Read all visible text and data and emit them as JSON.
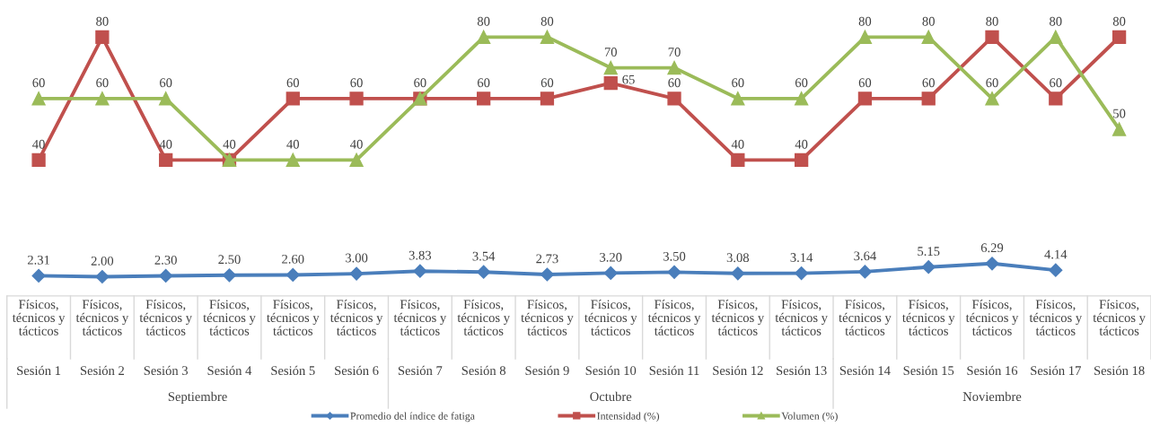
{
  "chart_data": {
    "type": "line",
    "categories": [
      "Físicos,\ntécnicos y\ntácticos\nSesión 1",
      "Físicos,\ntécnicos y\ntácticos\nSesión 2",
      "Físicos,\ntécnicos y\ntácticos\nSesión 3",
      "Físicos,\ntécnicos y\ntácticos\nSesión 4",
      "Físicos,\ntécnicos y\ntácticos\nSesión 5",
      "Físicos,\ntécnicos y\ntácticos\nSesión 6",
      "Físicos,\ntécnicos y\ntácticos\nSesión 7",
      "Físicos,\ntécnicos y\ntácticos\nSesión 8",
      "Físicos,\ntécnicos y\ntácticos\nSesión 9",
      "Físicos,\ntécnicos y\ntácticos\nSesión 10",
      "Físicos,\ntécnicos y\ntácticos\nSesión 11",
      "Físicos,\ntécnicos y\ntácticos\nSesión 12",
      "Físicos,\ntécnicos y\ntácticos\nSesión 13",
      "Físicos,\ntécnicos y\ntácticos\nSesión 14",
      "Físicos,\ntécnicos y\ntácticos\nSesión 15",
      "Físicos,\ntécnicos y\ntácticos\nSesión 16",
      "Físicos,\ntécnicos y\ntácticos\nSesión 17",
      "Físicos,\ntécnicos y\ntácticos\nSesión 18"
    ],
    "series": [
      {
        "name": "Promedio del índice de fatiga",
        "color": "#4a7ebb",
        "marker": "diamond",
        "values": [
          2.31,
          2.0,
          2.3,
          2.5,
          2.6,
          3.0,
          3.83,
          3.54,
          2.73,
          3.2,
          3.5,
          3.08,
          3.14,
          3.64,
          5.15,
          6.29,
          4.14,
          null
        ],
        "value_labels": [
          "2.31",
          "2.00",
          "2.30",
          "2.50",
          "2.60",
          "3.00",
          "3.83",
          "3.54",
          "2.73",
          "3.20",
          "3.50",
          "3.08",
          "3.14",
          "3.64",
          "5.15",
          "6.29",
          "4.14",
          null
        ]
      },
      {
        "name": "Intensidad (%)",
        "color": "#c0504d",
        "marker": "square",
        "values": [
          40,
          80,
          40,
          40,
          60,
          60,
          60,
          60,
          60,
          65,
          60,
          40,
          40,
          60,
          60,
          80,
          60,
          80
        ]
      },
      {
        "name": "Volumen (%)",
        "color": "#9bbb59",
        "marker": "triangle",
        "values": [
          60,
          60,
          60,
          40,
          40,
          40,
          60,
          80,
          80,
          70,
          70,
          60,
          60,
          80,
          80,
          60,
          80,
          50
        ],
        "value_labels": [
          "60",
          "60",
          "60",
          null,
          "40",
          "40",
          null,
          "80",
          "80",
          "70",
          "70",
          "60",
          "60",
          "80",
          "80",
          "60",
          "80",
          "50"
        ]
      }
    ],
    "annotations": [
      "Septiembre",
      "Octubre",
      "Noviembre"
    ],
    "tick_labels": "x",
    "grid": false,
    "data_labels": true,
    "legend": "bottom",
    "line_style": "solid"
  }
}
